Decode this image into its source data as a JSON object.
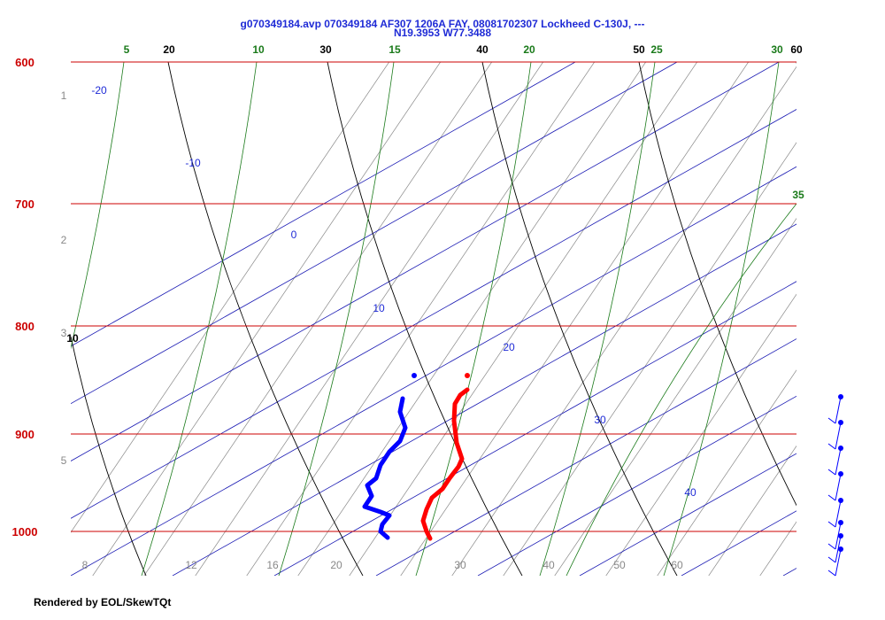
{
  "header": {
    "line1": "g070349184.avp 070349184 AF307 1206A FAY, 08081702307 Lockheed C-130J, ---",
    "line2": "N19.3953 W77.3488"
  },
  "footer": "Rendered by EOL/SkewTQt",
  "chart_data": {
    "type": "skew-t",
    "title": "g070349184.avp 070349184 AF307 1206A FAY, 08081702307 Lockheed C-130J, ---",
    "subtitle": "N19.3953 W77.3488",
    "pressure_levels": [
      "600",
      "700",
      "800",
      "900",
      "1000"
    ],
    "mixing_ratio_labels": [
      "1",
      "2",
      "3",
      "5",
      "8",
      "12",
      "16",
      "20",
      "30",
      "40",
      "50",
      "60"
    ],
    "isotherm_labels": [
      "-20",
      "-10",
      "0",
      "10",
      "20",
      "30",
      "40"
    ],
    "dry_adiabat_labels": [
      "10",
      "20",
      "30",
      "40",
      "50",
      "60"
    ],
    "moist_adiabat_labels": [
      "5",
      "10",
      "15",
      "20",
      "25",
      "30",
      "35"
    ],
    "series": [
      {
        "name": "Temperature",
        "color": "#ff0000"
      },
      {
        "name": "Dew point",
        "color": "#0000ff"
      },
      {
        "name": "Wind barbs",
        "color": "#0000ff"
      }
    ],
    "colors": {
      "isobar": "#cc0000",
      "isotherm": "#1a1ab3",
      "dry": "#000000",
      "moist": "#1a7a1a",
      "mixing": "#888888"
    }
  }
}
